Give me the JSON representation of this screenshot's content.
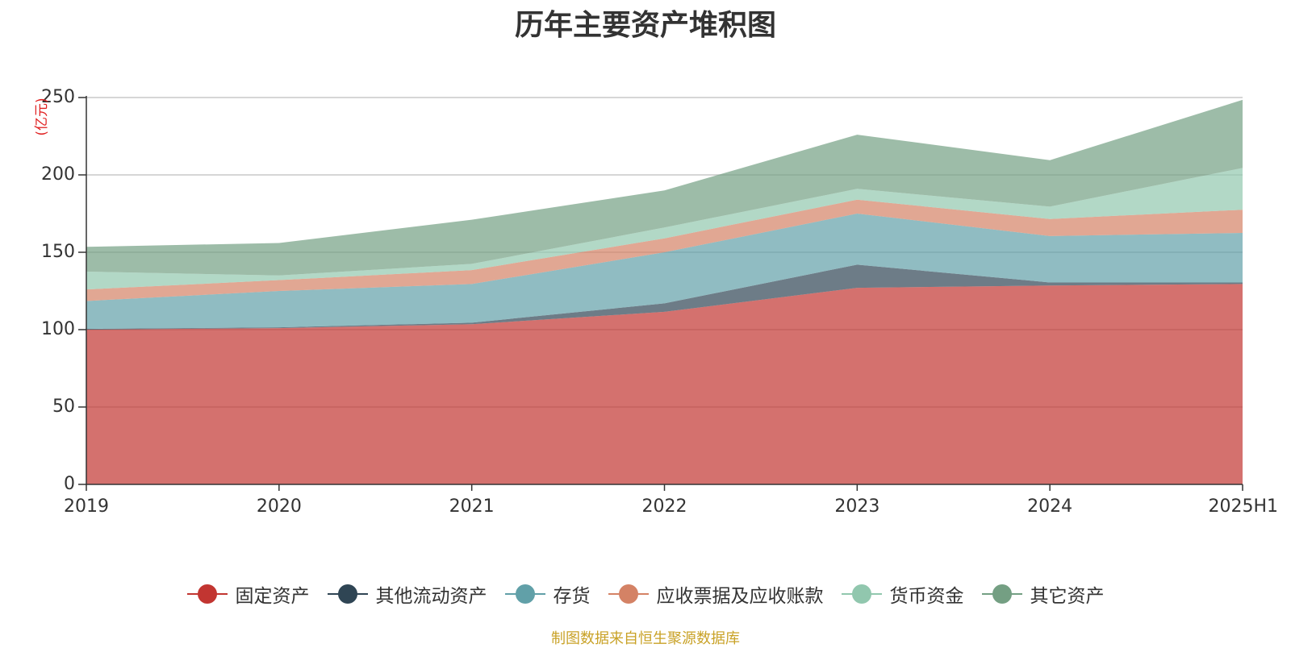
{
  "chart_data": {
    "type": "area",
    "stacked": true,
    "title": "历年主要资产堆积图",
    "unit_label": "(亿元)",
    "categories": [
      "2019",
      "2020",
      "2021",
      "2022",
      "2023",
      "2024",
      "2025H1"
    ],
    "ylim": [
      0,
      250
    ],
    "yticks": [
      0,
      50,
      100,
      150,
      200,
      250
    ],
    "grid": true,
    "legend_position": "bottom",
    "series": [
      {
        "name": "固定资产",
        "color": "#c23531",
        "values": [
          100,
          101,
          103.5,
          111.5,
          127,
          128.5,
          129.5
        ]
      },
      {
        "name": "其他流动资产",
        "color": "#2f4554",
        "values": [
          0.5,
          0.5,
          1,
          5.5,
          15,
          2,
          1
        ]
      },
      {
        "name": "存货",
        "color": "#61a0a8",
        "values": [
          18,
          23.5,
          25,
          33,
          33,
          30,
          32
        ]
      },
      {
        "name": "应收票据及应收账款",
        "color": "#d48265",
        "values": [
          7.5,
          7,
          9,
          9,
          9,
          11,
          15
        ]
      },
      {
        "name": "货币资金",
        "color": "#91c7ae",
        "values": [
          11.5,
          3,
          4,
          7,
          7,
          8,
          27
        ]
      },
      {
        "name": "其它资产",
        "color": "#749f83",
        "values": [
          16,
          21,
          28.5,
          24,
          35,
          30,
          44
        ]
      }
    ]
  },
  "source_note": "制图数据来自恒生聚源数据库"
}
